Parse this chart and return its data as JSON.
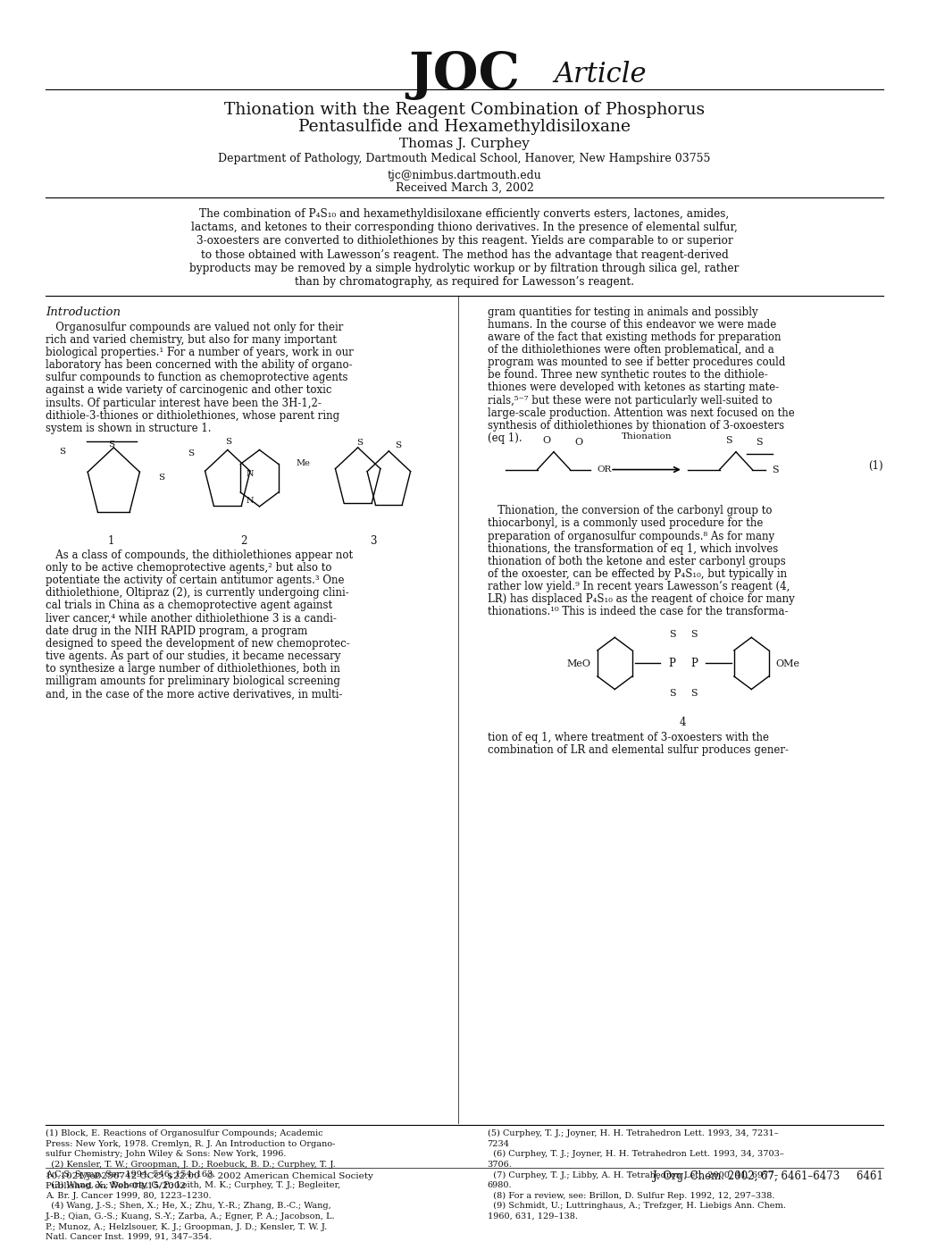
{
  "background_color": "#ffffff",
  "page_width": 10.2,
  "page_height": 13.2,
  "journal_header": "JOC",
  "journal_subheader": "Article",
  "title_line1": "Thionation with the Reagent Combination of Phosphorus",
  "title_line2": "Pentasulfide and Hexamethyldisiloxane",
  "author": "Thomas J. Curphey",
  "affiliation": "Department of Pathology, Dartmouth Medical School, Hanover, New Hampshire 03755",
  "email": "tjc@nimbus.dartmouth.edu",
  "received": "Received March 3, 2002",
  "abstract": "The combination of P₄S₁₀ and hexamethyldisiloxane efficiently converts esters, lactones, amides,\nlactams, and ketones to their corresponding thiono derivatives. In the presence of elemental sulfur,\n3-oxoesters are converted to dithiolethiones by this reagent. Yields are comparable to or superior\nto those obtained with Lawesson’s reagent. The method has the advantage that reagent-derived\nbyproducts may be removed by a simple hydrolytic workup or by filtration through silica gel, rather\nthan by chromatography, as required for Lawesson’s reagent.",
  "section_intro": "Introduction",
  "col_left_para1": "   Organosulfur compounds are valued not only for their\nrich and varied chemistry, but also for many important\nbiological properties.¹ For a number of years, work in our\nlaboratory has been concerned with the ability of organo-\nsulfur compounds to function as chemoprotective agents\nagainst a wide variety of carcinogenic and other toxic\ninsults. Of particular interest have been the 3H-1,2-\ndithiole-3-thiones or dithiolethiones, whose parent ring\nsystem is shown in structure 1.",
  "col_left_para2": "   As a class of compounds, the dithiolethiones appear not\nonly to be active chemoprotective agents,² but also to\npotentiate the activity of certain antitumor agents.³ One\ndithiolethione, Oltipraz (2), is currently undergoing clini-\ncal trials in China as a chemoprotective agent against\nliver cancer,⁴ while another dithiolethione 3 is a candi-\ndate drug in the NIH RAPID program, a program\ndesigned to speed the development of new chemoprotec-\ntive agents. As part of our studies, it became necessary\nto synthesize a large number of dithiolethiones, both in\nmilligram amounts for preliminary biological screening\nand, in the case of the more active derivatives, in multi-",
  "col_right_para1": "gram quantities for testing in animals and possibly\nhumans. In the course of this endeavor we were made\naware of the fact that existing methods for preparation\nof the dithiolethiones were often problematical, and a\nprogram was mounted to see if better procedures could\nbe found. Three new synthetic routes to the dithiole-\nthiones were developed with ketones as starting mate-\nrials,⁵⁻⁷ but these were not particularly well-suited to\nlarge-scale production. Attention was next focused on the\nsynthesis of dithiolethiones by thionation of 3-oxoesters\n(eq 1).",
  "col_right_para2": "   Thionation, the conversion of the carbonyl group to\nthiocarbonyl, is a commonly used procedure for the\npreparation of organosulfur compounds.⁸ As for many\nthionations, the transformation of eq 1, which involves\nthionation of both the ketone and ester carbonyl groups\nof the oxoester, can be effected by P₄S₁₀, but typically in\nrather low yield.⁹ In recent years Lawesson’s reagent (4,\nLR) has displaced P₄S₁₀ as the reagent of choice for many\nthionations.¹⁰ This is indeed the case for the transforma-",
  "col_right_para3": "tion of eq 1, where treatment of 3-oxoesters with the\ncombination of LR and elemental sulfur produces gener-",
  "footnote_line": "10.1021/jo0256742 CCC: $22.00  © 2002 American Chemical Society",
  "footnote_pub": "Published on Web 08/15/2002",
  "journal_ref": "J. Org. Chem. 2002, 67, 6461–6473     6461",
  "footnotes_left": "(1) Block, E. Reactions of Organosulfur Compounds; Academic\nPress: New York, 1978. Cremlyn, R. J. An Introduction to Organo-\nsulfur Chemistry; John Wiley & Sons: New York, 1996.\n  (2) Kensler, T. W.; Groopman, J. D.; Roebuck, B. D.; Curphey, T. J.\nA.C.S. Symp. Ser. 1994, 546, 154–163.\n  (3) Wang, X.; Doherty, G. P.; Leith, M. K.; Curphey, T. J.; Begleiter,\nA. Br. J. Cancer 1999, 80, 1223–1230.\n  (4) Wang, J.-S.; Shen, X.; He, X.; Zhu, Y.-R.; Zhang, B.-C.; Wang,\nJ.-B.; Qian, G.-S.; Kuang, S.-Y.; Zarba, A.; Egner, P. A.; Jacobson, L.\nP.; Munoz, A.; Helzlsouer, K. J.; Groopman, J. D.; Kensler, T. W. J.\nNatl. Cancer Inst. 1999, 91, 347–354.",
  "footnotes_right": "(5) Curphey, T. J.; Joyner, H. H. Tetrahedron Lett. 1993, 34, 7231–\n7234\n  (6) Curphey, T. J.; Joyner, H. H. Tetrahedron Lett. 1993, 34, 3703–\n3706.\n  (7) Curphey, T. J.; Libby, A. H. Tetrahedron Lett. 2000, 41, 6977–\n6980.\n  (8) For a review, see: Brillon, D. Sulfur Rep. 1992, 12, 297–338.\n  (9) Schmidt, U.; Luttringhaus, A.; Trefzger, H. Liebigs Ann. Chem.\n1960, 631, 129–138."
}
